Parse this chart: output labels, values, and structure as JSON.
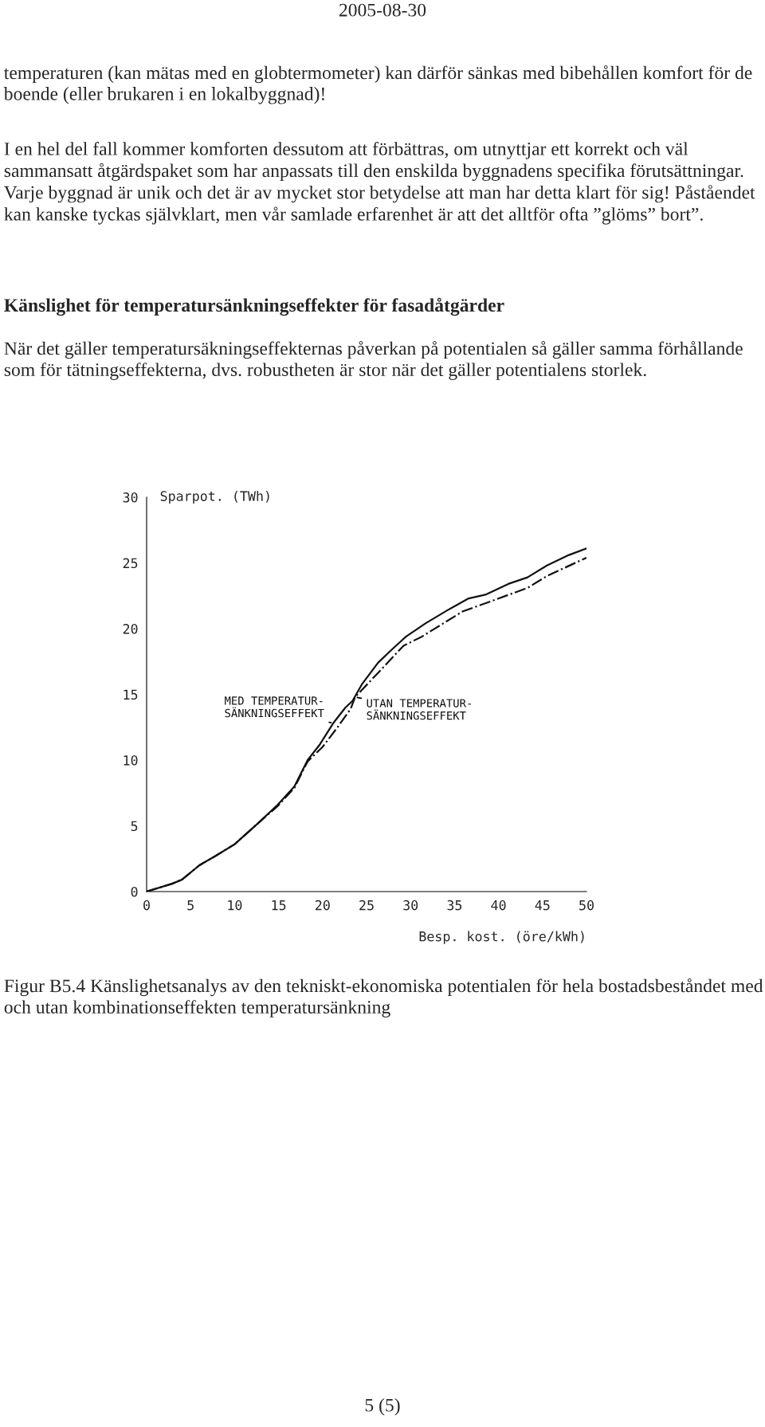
{
  "chart_data": {
    "type": "line",
    "title": "Känslighet för temperatursänkningseffekter för fasadåtgärder",
    "xlabel": "Besp. kost. (öre/kWh)",
    "ylabel": "Sparpot. (TWh)",
    "xlim": [
      0,
      50
    ],
    "ylim": [
      0,
      30
    ],
    "xticks": [
      0,
      5,
      10,
      15,
      20,
      25,
      30,
      35,
      40,
      45,
      50
    ],
    "yticks": [
      0,
      5,
      10,
      15,
      20,
      25,
      30
    ],
    "grid": false,
    "legend": false,
    "marker": "none",
    "series": [
      {
        "name": "MED TEMPERATUR-\nSÄNKNINGSEFFEKT",
        "color": "#111111",
        "line_style": "solid",
        "x": [
          0,
          2.9,
          4.0,
          6.0,
          7.8,
          10.0,
          12.5,
          14.9,
          16.8,
          18.3,
          19.7,
          21.2,
          22.6,
          23.4,
          24.5,
          26.3,
          27.7,
          29.5,
          31.7,
          34.2,
          36.6,
          38.6,
          41.1,
          43.3,
          45.5,
          48.0,
          50.0
        ],
        "values": [
          0,
          0.6,
          0.9,
          2.0,
          2.7,
          3.6,
          5.1,
          6.6,
          8.0,
          10.0,
          11.2,
          12.8,
          14.0,
          14.5,
          15.8,
          17.4,
          18.3,
          19.4,
          20.4,
          21.4,
          22.3,
          22.6,
          23.4,
          23.9,
          24.8,
          25.6,
          26.1
        ]
      },
      {
        "name": "UTAN TEMPERATUR-\nSÄNKNINGSEFFEKT",
        "color": "#111111",
        "line_style": "dashdot",
        "x": [
          0,
          2.9,
          4.0,
          6.0,
          7.8,
          10.0,
          12.5,
          14.9,
          16.8,
          18.3,
          20.0,
          21.7,
          23.2,
          23.7,
          26.4,
          29.2,
          31.3,
          35.9,
          38.8,
          43.3,
          45.5,
          50.0
        ],
        "values": [
          0,
          0.6,
          0.9,
          2.0,
          2.7,
          3.6,
          5.1,
          6.5,
          7.9,
          9.9,
          11.0,
          12.5,
          13.9,
          14.8,
          16.7,
          18.7,
          19.4,
          21.3,
          22.0,
          23.1,
          24.0,
          25.4
        ]
      }
    ],
    "annotations": [
      "2005-08-30",
      "temperaturen (kan mätas med en globtermometer) kan därför sänkas med bibehållen komfort för de boende (eller brukaren i en lokalbyggnad)!",
      "I en hel del fall kommer komforten dessutom att förbättras, om utnyttjar ett korrekt och väl sammansatt åtgärdspaket som har anpassats till den enskilda byggnadens specifika förutsättningar.  Varje byggnad är unik och det är av mycket stor betydelse att man har detta klart för sig! Påståendet kan kanske tyckas självklart, men vår samlade erfarenhet är att det alltför ofta ”glöms” bort”.",
      "När det gäller temperatursäkningseffekternas påverkan på potentialen så gäller samma förhållande som för tätningseffekterna, dvs. robustheten är stor när det gäller potentialens storlek.",
      "Figur B5.4 Känslighetsanalys av den tekniskt-ekonomiska potentialen för hela bostadsbeståndet med och utan kombinationseffekten temperatursänkning",
      "5 (5)"
    ]
  }
}
